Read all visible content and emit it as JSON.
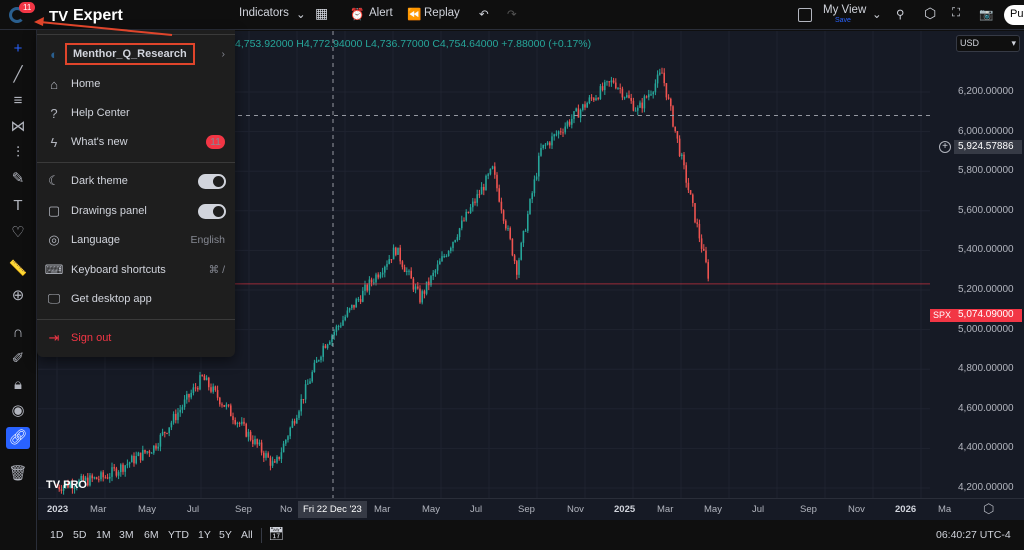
{
  "topbar": {
    "badge": "11",
    "indicators": "Indicators",
    "alert": "Alert",
    "replay": "Replay",
    "view_name": "My View",
    "view_save": "Save",
    "publish": "Pu"
  },
  "brand": {
    "name": "Expert"
  },
  "legend": {
    "text": "4,753.92000 H4,772.94000 L4,736.77000 C4,754.64000 +7.88000 (+0.17%)"
  },
  "currency": "USD",
  "menu": {
    "account": "Menthor_Q_Research",
    "items": [
      {
        "label": "Home",
        "icon": "home-icon"
      },
      {
        "label": "Help Center",
        "icon": "help-icon"
      },
      {
        "label": "What's new",
        "icon": "bolt-icon",
        "badge": "11"
      },
      {
        "label": "Dark theme",
        "icon": "moon-icon",
        "toggle": true
      },
      {
        "label": "Drawings panel",
        "icon": "panel-icon",
        "toggle": true
      },
      {
        "label": "Language",
        "icon": "globe-icon",
        "right": "English"
      },
      {
        "label": "Keyboard shortcuts",
        "icon": "keyboard-icon",
        "right": "⌘ /"
      },
      {
        "label": "Get desktop app",
        "icon": "desktop-icon"
      },
      {
        "label": "Sign out",
        "icon": "signout-icon"
      }
    ]
  },
  "price_axis": {
    "labels": [
      "6,200.00000",
      "6,000.00000",
      "5,800.00000",
      "5,600.00000",
      "5,400.00000",
      "5,200.00000",
      "5,000.00000",
      "4,800.00000",
      "4,600.00000",
      "4,400.00000",
      "4,200.00000"
    ],
    "crosshair_price": "5,924.57886",
    "symbol": "SPX",
    "last_price": "5,074.09000"
  },
  "time_axis": {
    "labels": [
      "2023",
      "Mar",
      "May",
      "Jul",
      "Sep",
      "No",
      "Mar",
      "May",
      "Jul",
      "Sep",
      "Nov",
      "2025",
      "Mar",
      "May",
      "Jul",
      "Sep",
      "Nov",
      "2026",
      "Ma"
    ],
    "crosshair_date": "Fri 22 Dec '23"
  },
  "ranges": [
    "1D",
    "5D",
    "1M",
    "3M",
    "6M",
    "YTD",
    "1Y",
    "5Y",
    "All"
  ],
  "clock": "06:40:27 UTC-4",
  "price_path": [
    [
      "2023-01",
      4050
    ],
    [
      "2023-03",
      4100
    ],
    [
      "2023-05",
      4250
    ],
    [
      "2023-07",
      4600
    ],
    [
      "2023-08",
      4450
    ],
    [
      "2023-10",
      4150
    ],
    [
      "2023-12",
      4760
    ],
    [
      "2024-03",
      5250
    ],
    [
      "2024-04",
      5000
    ],
    [
      "2024-07",
      5650
    ],
    [
      "2024-08",
      5150
    ],
    [
      "2024-09",
      5750
    ],
    [
      "2024-11",
      6000
    ],
    [
      "2024-12",
      6100
    ],
    [
      "2025-01",
      5950
    ],
    [
      "2025-02",
      6140
    ],
    [
      "2025-03",
      5600
    ],
    [
      "2025-04",
      5074
    ]
  ],
  "colors": {
    "up": "#26a69a",
    "down": "#ef5350",
    "accent": "#2962ff",
    "badge": "#f23645"
  }
}
